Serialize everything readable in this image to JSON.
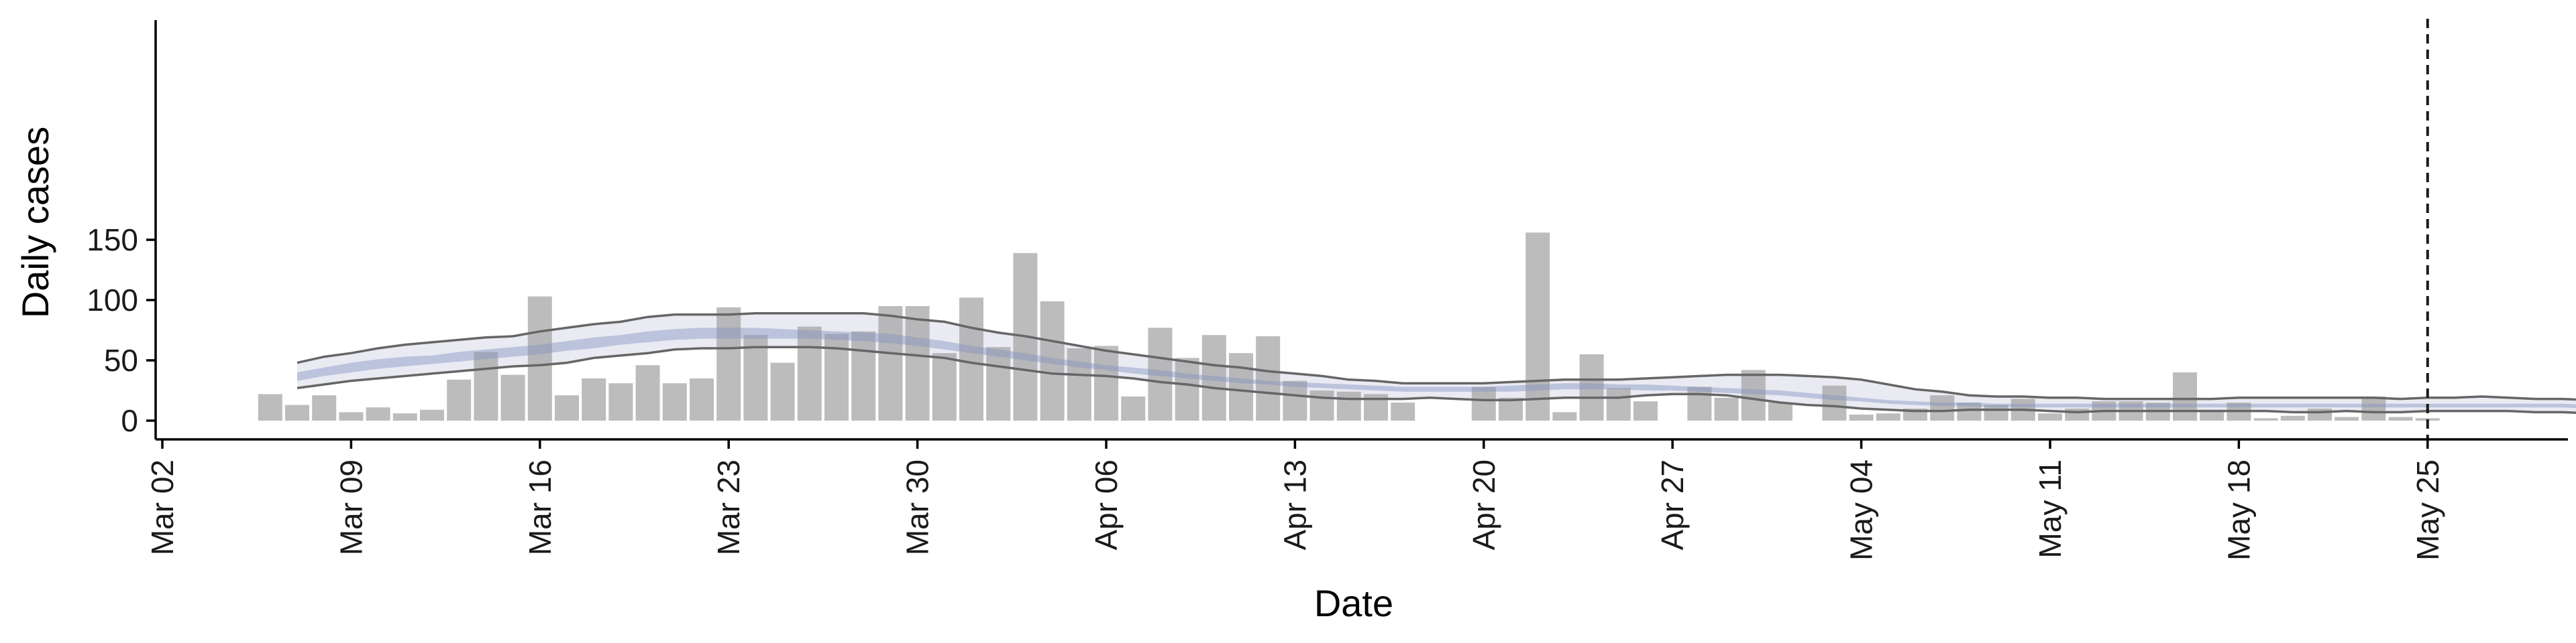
{
  "chart_data": {
    "type": "bar",
    "xlabel": "Date",
    "ylabel": "Daily cases",
    "ylim": [
      -7,
      165
    ],
    "yticks": [
      0,
      50,
      100,
      150
    ],
    "x_dates": [
      "Mar 02",
      "Mar 09",
      "Mar 16",
      "Mar 23",
      "Mar 30",
      "Apr 06",
      "Apr 13",
      "Apr 20",
      "Apr 27",
      "May 04",
      "May 11",
      "May 18",
      "May 25"
    ],
    "start_date": "Mar 06",
    "daily_cases": [
      22,
      13,
      21,
      7,
      11,
      6,
      9,
      34,
      57,
      38,
      103,
      21,
      35,
      31,
      46,
      31,
      35,
      94,
      71,
      48,
      78,
      72,
      74,
      95,
      95,
      56,
      102,
      61,
      139,
      99,
      60,
      62,
      20,
      77,
      52,
      71,
      56,
      70,
      33,
      25,
      24,
      22,
      15,
      0,
      0,
      28,
      19,
      156,
      7,
      55,
      27,
      16,
      0,
      28,
      19,
      42,
      15,
      0,
      29,
      5,
      6,
      10,
      21,
      15,
      13,
      18,
      6,
      10,
      16,
      16,
      15,
      40,
      9,
      15,
      2,
      4,
      10,
      3,
      20,
      3,
      2
    ],
    "estimate_start": "Mar 07",
    "estimate_outer_upper": [
      48,
      53,
      56,
      60,
      63,
      65,
      67,
      69,
      70,
      74,
      77,
      80,
      82,
      86,
      88,
      88,
      88,
      89,
      89,
      89,
      89,
      89,
      87,
      84,
      82,
      77,
      73,
      70,
      66,
      62,
      58,
      55,
      52,
      49,
      46,
      44,
      41,
      39,
      37,
      34,
      33,
      31,
      31,
      31,
      31,
      32,
      33,
      34,
      34,
      34,
      35,
      36,
      37,
      38,
      38,
      38,
      37,
      36,
      34,
      30,
      26,
      24,
      21,
      20,
      20,
      19,
      19,
      18,
      18,
      18,
      18,
      18,
      19,
      19,
      19,
      19,
      19,
      19,
      18,
      19,
      19,
      20,
      19,
      18,
      18,
      17,
      18,
      20,
      24
    ],
    "estimate_outer_lower": [
      27,
      30,
      33,
      35,
      37,
      39,
      41,
      43,
      45,
      46,
      48,
      52,
      54,
      56,
      59,
      60,
      60,
      61,
      61,
      61,
      60,
      58,
      56,
      54,
      52,
      48,
      45,
      42,
      39,
      38,
      37,
      35,
      32,
      30,
      27,
      25,
      23,
      21,
      19,
      18,
      18,
      18,
      19,
      18,
      17,
      17,
      18,
      19,
      19,
      19,
      21,
      22,
      22,
      21,
      18,
      15,
      13,
      12,
      10,
      9,
      8,
      8,
      9,
      9,
      9,
      8,
      7,
      8,
      8,
      8,
      8,
      8,
      8,
      8,
      7,
      7,
      8,
      7,
      7,
      8,
      8,
      8,
      8,
      7,
      7,
      6,
      6,
      5,
      6
    ],
    "estimate_inner_upper": [
      40,
      44,
      48,
      51,
      53,
      54,
      57,
      59,
      61,
      63,
      66,
      69,
      71,
      74,
      76,
      77,
      77,
      77,
      76,
      75,
      74,
      73,
      72,
      69,
      66,
      62,
      59,
      56,
      52,
      49,
      46,
      44,
      42,
      39,
      37,
      35,
      33,
      32,
      31,
      30,
      29,
      28,
      28,
      28,
      28,
      29,
      30,
      31,
      31,
      30,
      30,
      29,
      28,
      27,
      26,
      25,
      23,
      21,
      19,
      17,
      16,
      15,
      15,
      14,
      14,
      14,
      14,
      14,
      14,
      14,
      14,
      14,
      14,
      14,
      14,
      14,
      14,
      14,
      14,
      14,
      14,
      14,
      14,
      14,
      14,
      13,
      13,
      13,
      13
    ],
    "estimate_inner_lower": [
      33,
      37,
      40,
      43,
      45,
      47,
      49,
      51,
      53,
      55,
      58,
      60,
      63,
      65,
      67,
      68,
      68,
      68,
      68,
      68,
      67,
      66,
      64,
      62,
      59,
      56,
      53,
      50,
      47,
      44,
      42,
      39,
      37,
      35,
      33,
      31,
      30,
      28,
      27,
      26,
      25,
      24,
      24,
      24,
      24,
      24,
      25,
      26,
      26,
      26,
      25,
      25,
      24,
      23,
      22,
      21,
      19,
      17,
      16,
      14,
      13,
      12,
      12,
      11,
      11,
      11,
      11,
      11,
      11,
      11,
      11,
      11,
      11,
      11,
      11,
      11,
      11,
      11,
      11,
      11,
      11,
      11,
      11,
      11,
      11,
      10,
      10,
      10,
      10
    ],
    "vline_date": "May 25"
  }
}
